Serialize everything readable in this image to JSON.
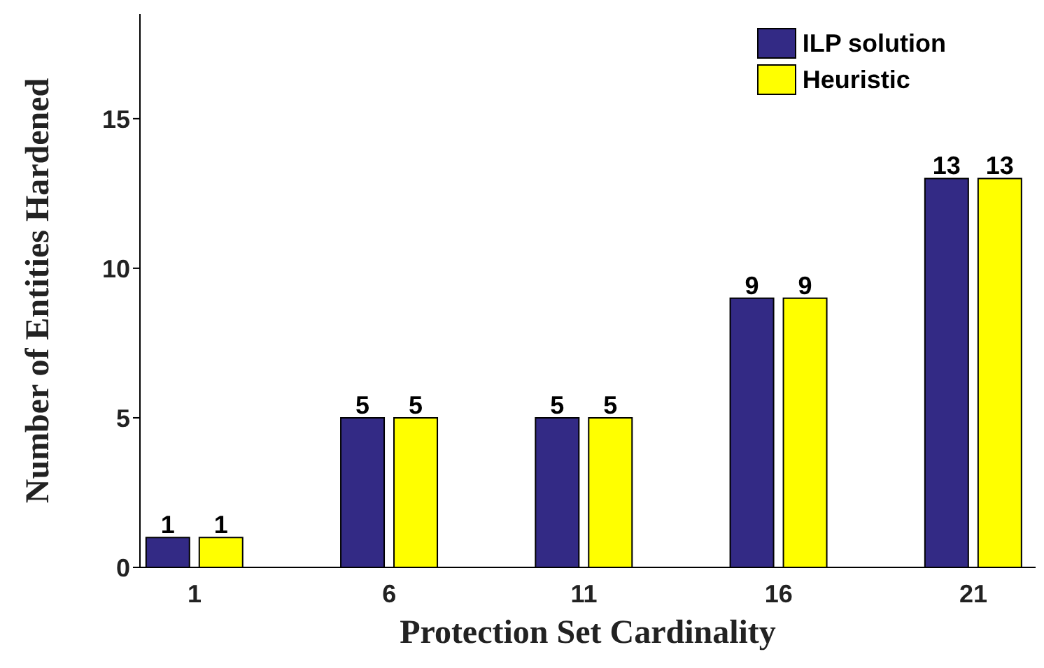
{
  "chart_data": {
    "type": "bar",
    "xlabel": "Protection Set Cardinality",
    "ylabel": "Number of Entities Hardened",
    "x": [
      1,
      6,
      11,
      16,
      21
    ],
    "xlim": [
      -0.4,
      22.6
    ],
    "xticks": [
      1,
      6,
      11,
      16,
      21
    ],
    "series": [
      {
        "name": "ILP solution",
        "color": "#332a85",
        "values": [
          1,
          5,
          5,
          9,
          13
        ]
      },
      {
        "name": "Heuristic",
        "color": "#ffff00",
        "values": [
          1,
          5,
          5,
          9,
          13
        ]
      }
    ],
    "ylim": [
      0,
      18.5
    ],
    "yticks": [
      0,
      5,
      10,
      15
    ],
    "data_labels": true,
    "legend": "top right",
    "grid": false
  }
}
